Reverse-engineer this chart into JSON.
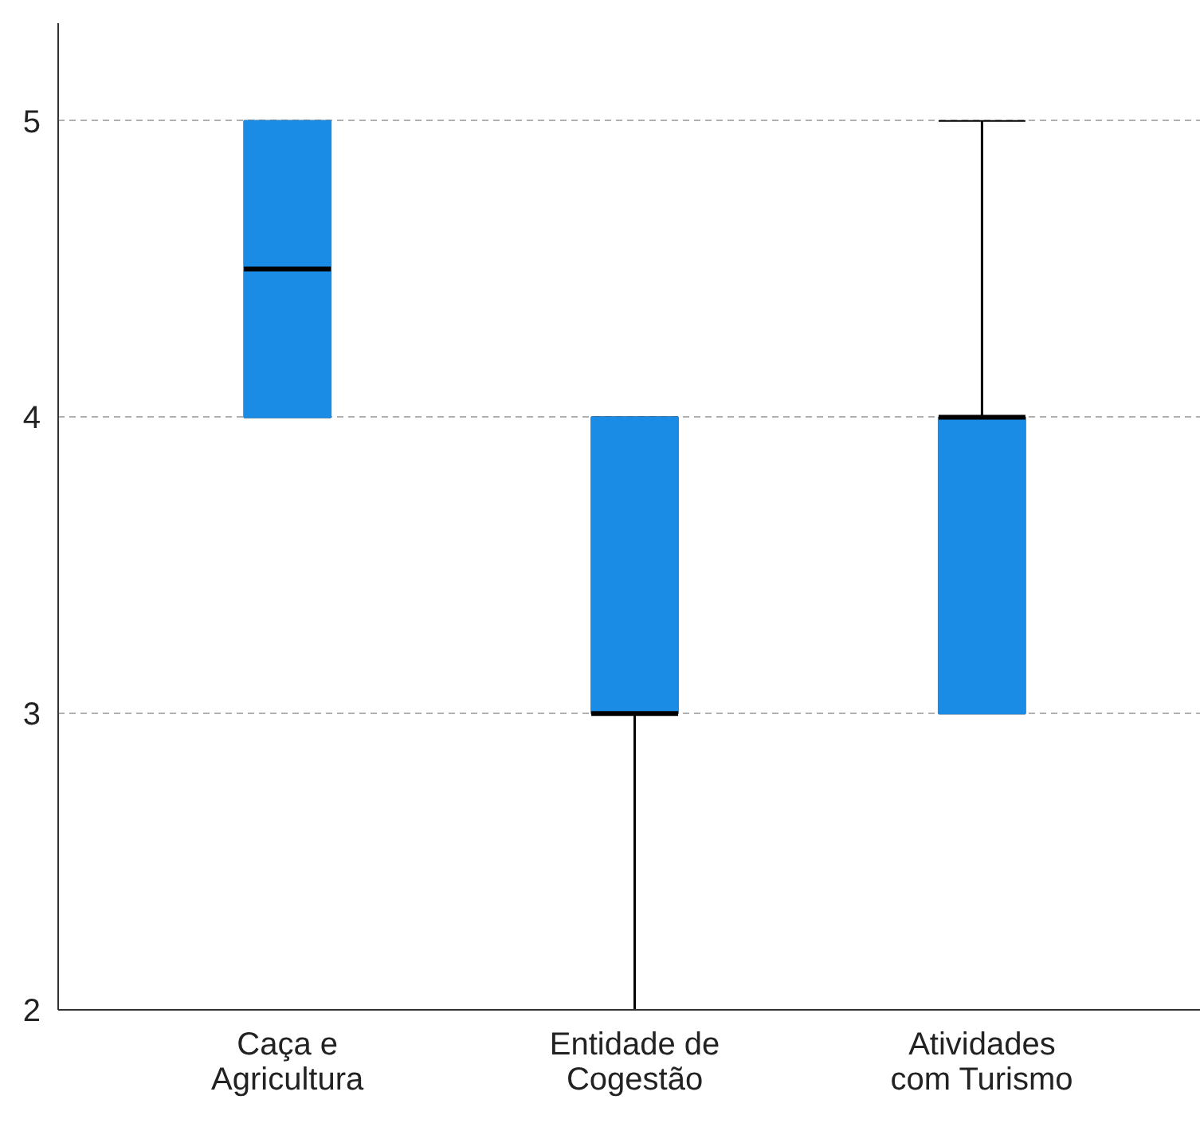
{
  "chart_data": {
    "type": "box",
    "categories": [
      "Caça e\nAgricultura",
      "Entidade de\nCogestão",
      "Atividades\ncom Turismo"
    ],
    "boxes": [
      {
        "low": 4,
        "q1": 4,
        "median": 4.5,
        "q3": 5,
        "high": 5
      },
      {
        "low": 2,
        "q1": 3,
        "median": 3,
        "q3": 4,
        "high": 4
      },
      {
        "low": 3,
        "q1": 3,
        "median": 4,
        "q3": 4,
        "high": 5
      }
    ],
    "color": "#1a8ce6",
    "ylim": [
      2,
      5.33
    ],
    "yticks": [
      2,
      3,
      4,
      5
    ],
    "grid": "y"
  }
}
